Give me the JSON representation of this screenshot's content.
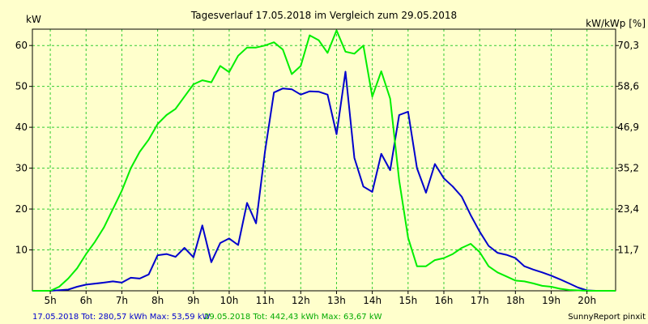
{
  "colors": {
    "background": "#ffffcc",
    "grid": "#33cc33",
    "series_blue": "#0000cc",
    "series_green": "#00ee00",
    "text": "#000000",
    "footer_blue": "#0000cc",
    "footer_green": "#00aa00"
  },
  "chart_data": {
    "type": "line",
    "title": "Tagesverlauf 17.05.2018 im Vergleich zum 29.05.2018",
    "ylabel_left": "kW",
    "ylabel_right": "kW/kWp [%]",
    "xlim": [
      4.5,
      20.8
    ],
    "ylim": [
      0,
      64
    ],
    "grid": true,
    "x_ticks": [
      {
        "v": 5,
        "label": "5h"
      },
      {
        "v": 6,
        "label": "6h"
      },
      {
        "v": 7,
        "label": "7h"
      },
      {
        "v": 8,
        "label": "8h"
      },
      {
        "v": 9,
        "label": "9h"
      },
      {
        "v": 10,
        "label": "10h"
      },
      {
        "v": 11,
        "label": "11h"
      },
      {
        "v": 12,
        "label": "12h"
      },
      {
        "v": 13,
        "label": "13h"
      },
      {
        "v": 14,
        "label": "14h"
      },
      {
        "v": 15,
        "label": "15h"
      },
      {
        "v": 16,
        "label": "16h"
      },
      {
        "v": 17,
        "label": "17h"
      },
      {
        "v": 18,
        "label": "18h"
      },
      {
        "v": 19,
        "label": "19h"
      },
      {
        "v": 20,
        "label": "20h"
      }
    ],
    "y_ticks_left": [
      {
        "v": 10,
        "label": "10"
      },
      {
        "v": 20,
        "label": "20"
      },
      {
        "v": 30,
        "label": "30"
      },
      {
        "v": 40,
        "label": "40"
      },
      {
        "v": 50,
        "label": "50"
      },
      {
        "v": 60,
        "label": "60"
      }
    ],
    "y_ticks_right": [
      {
        "v": 10,
        "label": "11,7"
      },
      {
        "v": 20,
        "label": "23,4"
      },
      {
        "v": 30,
        "label": "35,2"
      },
      {
        "v": 40,
        "label": "46,9"
      },
      {
        "v": 50,
        "label": "58,6"
      },
      {
        "v": 60,
        "label": "70,3"
      }
    ],
    "series": [
      {
        "name": "17.05.2018",
        "color": "#0000cc",
        "points": [
          [
            4.5,
            0
          ],
          [
            5.0,
            0
          ],
          [
            5.5,
            0.3
          ],
          [
            5.75,
            1
          ],
          [
            6.0,
            1.5
          ],
          [
            6.5,
            2
          ],
          [
            6.75,
            2.3
          ],
          [
            7.0,
            2
          ],
          [
            7.25,
            3.2
          ],
          [
            7.5,
            3
          ],
          [
            7.75,
            4
          ],
          [
            8.0,
            8.7
          ],
          [
            8.25,
            9
          ],
          [
            8.5,
            8.3
          ],
          [
            8.75,
            10.5
          ],
          [
            9.0,
            8.2
          ],
          [
            9.25,
            16
          ],
          [
            9.5,
            7
          ],
          [
            9.75,
            11.7
          ],
          [
            10.0,
            12.8
          ],
          [
            10.25,
            11.2
          ],
          [
            10.5,
            21.5
          ],
          [
            10.75,
            16.5
          ],
          [
            11.0,
            34
          ],
          [
            11.25,
            48.5
          ],
          [
            11.5,
            49.5
          ],
          [
            11.75,
            49.3
          ],
          [
            12.0,
            48
          ],
          [
            12.25,
            48.8
          ],
          [
            12.5,
            48.7
          ],
          [
            12.75,
            48
          ],
          [
            13.0,
            38.3
          ],
          [
            13.25,
            53.6
          ],
          [
            13.5,
            32.5
          ],
          [
            13.75,
            25.5
          ],
          [
            14.0,
            24.2
          ],
          [
            14.25,
            33.5
          ],
          [
            14.5,
            29.5
          ],
          [
            14.75,
            43
          ],
          [
            15.0,
            43.8
          ],
          [
            15.25,
            30
          ],
          [
            15.5,
            24
          ],
          [
            15.75,
            31
          ],
          [
            16.0,
            27.5
          ],
          [
            16.25,
            25.5
          ],
          [
            16.5,
            23
          ],
          [
            16.75,
            18.5
          ],
          [
            17.0,
            14.5
          ],
          [
            17.25,
            11
          ],
          [
            17.5,
            9.3
          ],
          [
            17.75,
            8.8
          ],
          [
            18.0,
            8
          ],
          [
            18.25,
            6
          ],
          [
            18.5,
            5.2
          ],
          [
            18.75,
            4.5
          ],
          [
            19.0,
            3.7
          ],
          [
            19.25,
            2.8
          ],
          [
            19.5,
            1.8
          ],
          [
            19.75,
            0.8
          ],
          [
            20.0,
            0.1
          ],
          [
            20.25,
            0
          ],
          [
            20.8,
            0
          ]
        ]
      },
      {
        "name": "29.05.2018",
        "color": "#00ee00",
        "points": [
          [
            4.5,
            0
          ],
          [
            5.0,
            0
          ],
          [
            5.25,
            1
          ],
          [
            5.5,
            3
          ],
          [
            5.75,
            5.5
          ],
          [
            6.0,
            9
          ],
          [
            6.25,
            12
          ],
          [
            6.5,
            15.5
          ],
          [
            6.75,
            20
          ],
          [
            7.0,
            24.5
          ],
          [
            7.25,
            30
          ],
          [
            7.5,
            34
          ],
          [
            7.75,
            37
          ],
          [
            8.0,
            40.8
          ],
          [
            8.25,
            43
          ],
          [
            8.5,
            44.5
          ],
          [
            8.75,
            47.5
          ],
          [
            9.0,
            50.5
          ],
          [
            9.25,
            51.5
          ],
          [
            9.5,
            51
          ],
          [
            9.75,
            55
          ],
          [
            10.0,
            53.5
          ],
          [
            10.25,
            57.5
          ],
          [
            10.5,
            59.5
          ],
          [
            10.75,
            59.5
          ],
          [
            11.0,
            60
          ],
          [
            11.25,
            60.8
          ],
          [
            11.5,
            59
          ],
          [
            11.75,
            53
          ],
          [
            12.0,
            55
          ],
          [
            12.25,
            62.5
          ],
          [
            12.5,
            61.3
          ],
          [
            12.75,
            58.2
          ],
          [
            13.0,
            63.7
          ],
          [
            13.25,
            58.5
          ],
          [
            13.5,
            58
          ],
          [
            13.75,
            60
          ],
          [
            14.0,
            47.5
          ],
          [
            14.25,
            53.7
          ],
          [
            14.5,
            47
          ],
          [
            14.75,
            27
          ],
          [
            15.0,
            13
          ],
          [
            15.25,
            6
          ],
          [
            15.5,
            6
          ],
          [
            15.75,
            7.5
          ],
          [
            16.0,
            8
          ],
          [
            16.25,
            9
          ],
          [
            16.5,
            10.5
          ],
          [
            16.75,
            11.5
          ],
          [
            17.0,
            9.5
          ],
          [
            17.25,
            6
          ],
          [
            17.5,
            4.5
          ],
          [
            17.75,
            3.5
          ],
          [
            18.0,
            2.5
          ],
          [
            18.25,
            2.3
          ],
          [
            18.5,
            1.8
          ],
          [
            18.75,
            1.2
          ],
          [
            19.0,
            1
          ],
          [
            19.25,
            0.5
          ],
          [
            19.5,
            0.2
          ],
          [
            19.75,
            0.1
          ],
          [
            20.0,
            0
          ],
          [
            20.8,
            0
          ]
        ]
      }
    ]
  },
  "footer": {
    "series1_summary": "17.05.2018 Tot: 280,57 kWh Max: 53,59 kW",
    "series2_summary": "29.05.2018 Tot: 442,43 kWh Max: 63,67 kW",
    "credit": "SunnyReport pinxit"
  }
}
